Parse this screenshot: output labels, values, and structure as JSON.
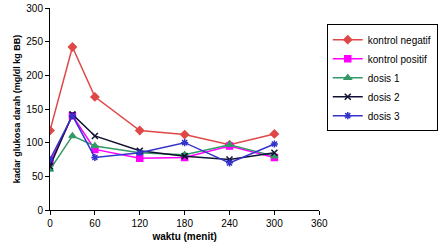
{
  "chart_data": {
    "type": "line",
    "x_label": "waktu (menit)",
    "y_label": "kadar glukosa darah (mg/dl kg BB)",
    "x": [
      0,
      30,
      60,
      120,
      180,
      240,
      300
    ],
    "series": [
      {
        "name": "kontrol negatif",
        "color": "#e04848",
        "marker": "diamond",
        "values": [
          118,
          242,
          168,
          118,
          112,
          97,
          113
        ]
      },
      {
        "name": "kontrol positif",
        "color": "#ff00ff",
        "marker": "square",
        "values": [
          70,
          140,
          90,
          77,
          78,
          95,
          78
        ]
      },
      {
        "name": "dosis 1",
        "color": "#339966",
        "marker": "triangle",
        "values": [
          60,
          110,
          95,
          85,
          82,
          97,
          80
        ]
      },
      {
        "name": "dosis 2",
        "color": "#111133",
        "marker": "x",
        "values": [
          65,
          142,
          110,
          88,
          80,
          75,
          85
        ]
      },
      {
        "name": "dosis 3",
        "color": "#3333cc",
        "marker": "asterisk",
        "values": [
          75,
          140,
          78,
          85,
          100,
          70,
          98
        ]
      }
    ],
    "xlim": [
      0,
      360
    ],
    "xticks": [
      0,
      60,
      120,
      180,
      240,
      300,
      360
    ],
    "ylim": [
      0,
      300
    ],
    "yticks": [
      0,
      50,
      100,
      150,
      200,
      250,
      300
    ],
    "grid": false,
    "legend": "right"
  }
}
